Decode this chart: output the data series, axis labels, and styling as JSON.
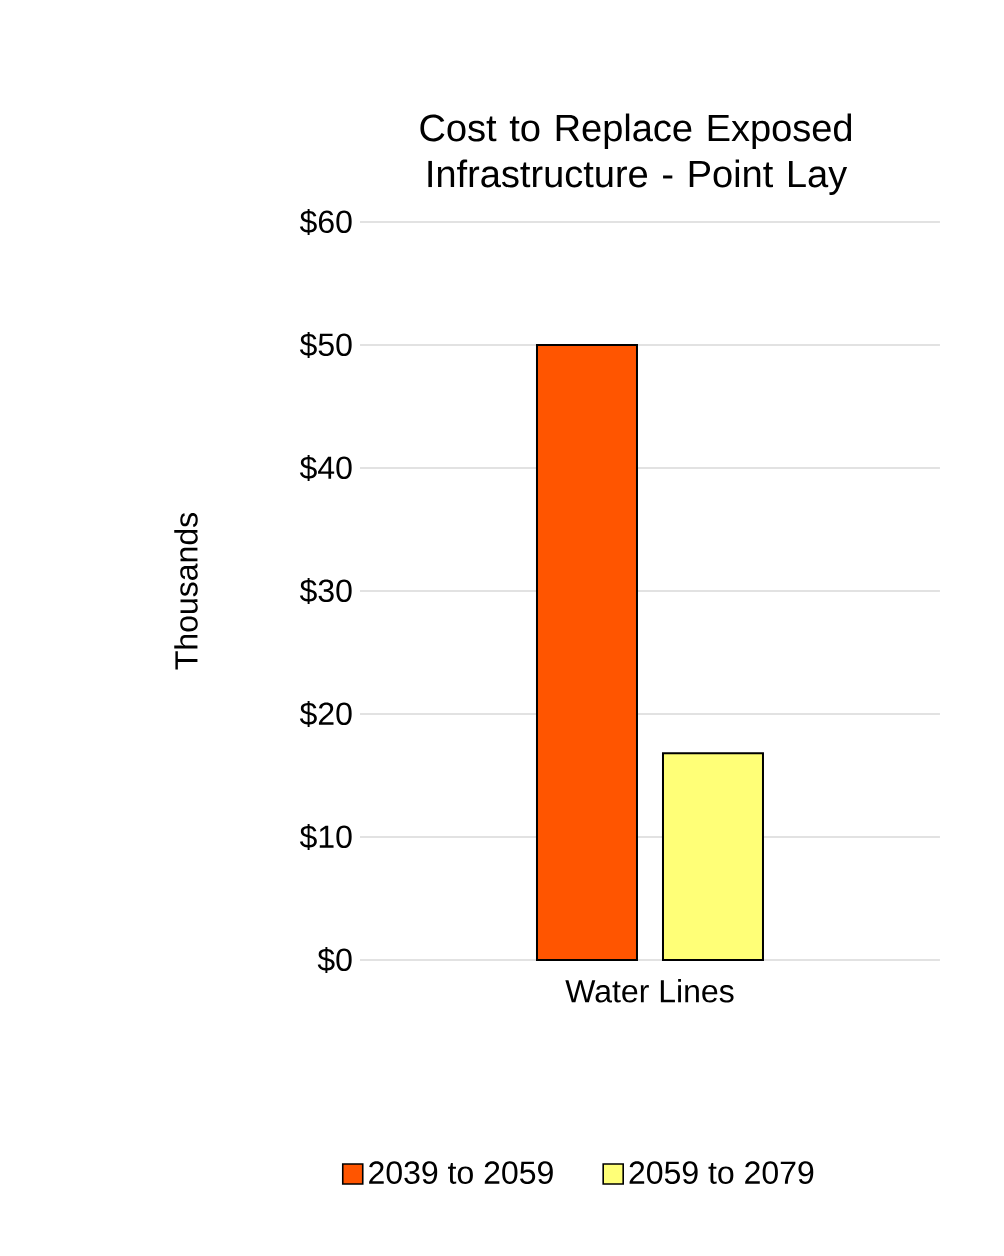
{
  "chart_data": {
    "type": "bar",
    "title": "Cost to Replace Exposed Infrastructure - Point Lay",
    "ylabel": "Thousands",
    "categories": [
      "Water Lines"
    ],
    "series": [
      {
        "name": "2039 to 2059",
        "color": "#ff5500",
        "values": [
          50
        ]
      },
      {
        "name": "2059 to 2079",
        "color": "#ffff77",
        "values": [
          16.8
        ]
      }
    ],
    "ylim": [
      0,
      60
    ],
    "yticks": [
      {
        "value": 0,
        "label": "$0"
      },
      {
        "value": 10,
        "label": "$10"
      },
      {
        "value": 20,
        "label": "$20"
      },
      {
        "value": 30,
        "label": "$30"
      },
      {
        "value": 40,
        "label": "$40"
      },
      {
        "value": 50,
        "label": "$50"
      },
      {
        "value": 60,
        "label": "$60"
      }
    ],
    "grid": "y",
    "legend": "bottom"
  }
}
